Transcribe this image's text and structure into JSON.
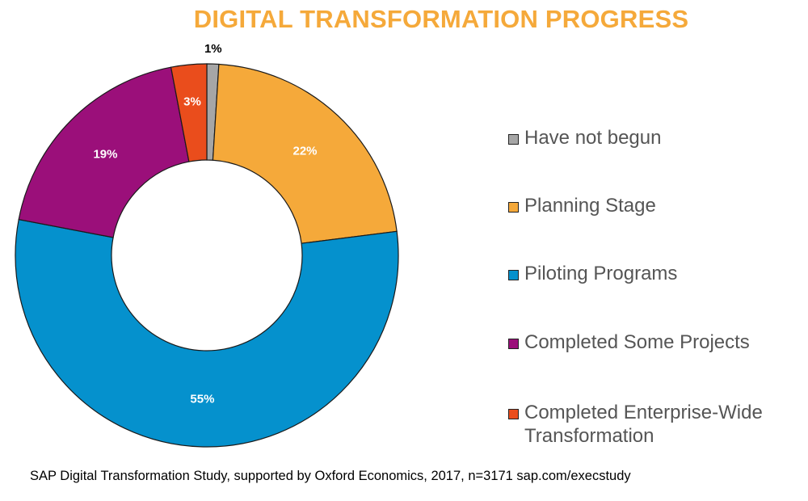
{
  "chart_data": {
    "type": "pie",
    "donut": true,
    "title": "DIGITAL TRANSFORMATION PROGRESS",
    "categories": [
      "Have not begun",
      "Planning Stage",
      "Piloting Programs",
      "Completed Some Projects",
      "Completed Enterprise-Wide Transformation"
    ],
    "values": [
      1,
      22,
      55,
      19,
      3
    ],
    "value_labels": [
      "1%",
      "22%",
      "55%",
      "19%",
      "3%"
    ],
    "colors": [
      "#a6a6a6",
      "#f5a93a",
      "#0591cd",
      "#9b0f7a",
      "#ea4d1c"
    ],
    "legend_placement": "right",
    "source": "SAP Digital Transformation Study, supported by Oxford Economics, 2017, n=3171 sap.com/execstudy"
  },
  "theme": {
    "title_color": "#f5a93a",
    "edge_color": "#1a1a1a",
    "label_color_light": "#ffffff",
    "label_color_dark": "#000000"
  }
}
